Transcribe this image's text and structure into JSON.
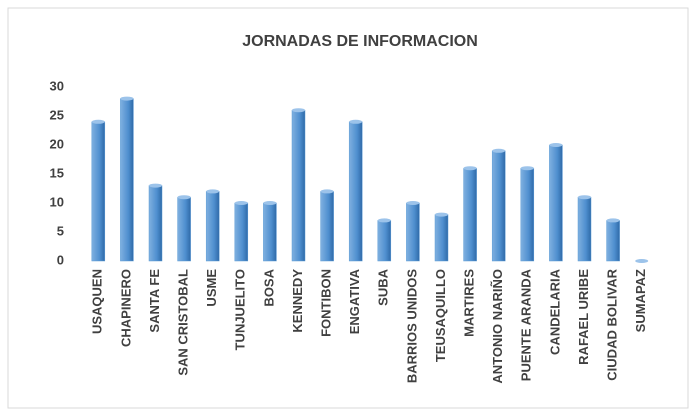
{
  "chart_data": {
    "type": "bar",
    "title": "JORNADAS  DE INFORMACION",
    "categories": [
      "USAQUEN",
      "CHAPINERO",
      "SANTA FE",
      "SAN CRISTOBAL",
      "USME",
      "TUNJUELITO",
      "BOSA",
      "KENNEDY",
      "FONTIBON",
      "ENGATIVA",
      "SUBA",
      "BARRIOS UNIDOS",
      "TEUSAQUILLO",
      "MARTIRES",
      "ANTONIO NARIÑO",
      "PUENTE ARANDA",
      "CANDELARIA",
      "RAFAEL URIBE",
      "CIUDAD BOLIVAR",
      "SUMAPAZ"
    ],
    "values": [
      24,
      28,
      13,
      11,
      12,
      10,
      10,
      26,
      12,
      24,
      7,
      10,
      8,
      16,
      19,
      16,
      20,
      11,
      7,
      0
    ],
    "color": "#5b9bd5",
    "ylim": [
      0,
      30
    ],
    "yticks": [
      0,
      5,
      10,
      15,
      20,
      25,
      30
    ],
    "grid": false
  }
}
